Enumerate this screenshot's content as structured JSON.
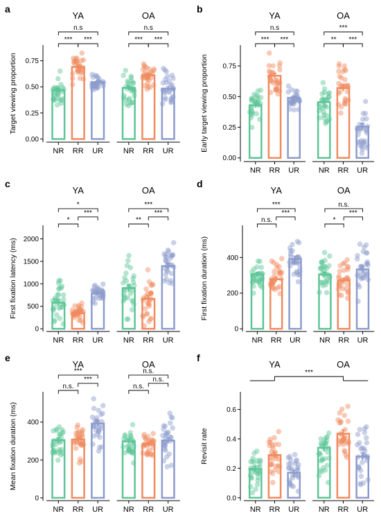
{
  "colors": {
    "NR": "#5cc596",
    "RR": "#f08a5e",
    "UR": "#8c9bcc"
  },
  "chart_data": [
    {
      "panel": "a",
      "type": "bar",
      "ylabel": "Target viewing proportion",
      "yticks": [
        "0.00",
        "0.25",
        "0.50",
        "0.75"
      ],
      "ylim": [
        -0.03,
        0.9
      ],
      "ytick_values": [
        0,
        0.25,
        0.5,
        0.75
      ],
      "groups": [
        {
          "title": "YA",
          "categories": [
            "NR",
            "RR",
            "UR"
          ],
          "values": [
            0.465,
            0.69,
            0.545
          ],
          "errors": [
            0.018,
            0.018,
            0.01
          ]
        },
        {
          "title": "OA",
          "categories": [
            "NR",
            "RR",
            "UR"
          ],
          "values": [
            0.49,
            0.61,
            0.48
          ],
          "errors": [
            0.02,
            0.015,
            0.02
          ]
        }
      ],
      "brackets": [
        {
          "group": 0,
          "from": 0,
          "to": 1,
          "level": 1,
          "label": "***"
        },
        {
          "group": 0,
          "from": 1,
          "to": 2,
          "level": 1,
          "label": "***"
        },
        {
          "group": 0,
          "from": 0,
          "to": 2,
          "level": 2,
          "label": "n.s"
        },
        {
          "group": 1,
          "from": 0,
          "to": 1,
          "level": 1,
          "label": "***"
        },
        {
          "group": 1,
          "from": 1,
          "to": 2,
          "level": 1,
          "label": "***"
        },
        {
          "group": 1,
          "from": 0,
          "to": 2,
          "level": 2,
          "label": "n.s"
        }
      ]
    },
    {
      "panel": "b",
      "type": "bar",
      "ylabel": "Early target viewing proportion",
      "yticks": [
        "0.00",
        "0.25",
        "0.50",
        "0.75"
      ],
      "ylim": [
        -0.03,
        0.92
      ],
      "ytick_values": [
        0,
        0.25,
        0.5,
        0.75
      ],
      "groups": [
        {
          "title": "YA",
          "categories": [
            "NR",
            "RR",
            "UR"
          ],
          "values": [
            0.43,
            0.67,
            0.49
          ],
          "errors": [
            0.02,
            0.02,
            0.012
          ]
        },
        {
          "title": "OA",
          "categories": [
            "NR",
            "RR",
            "UR"
          ],
          "values": [
            0.455,
            0.57,
            0.255
          ],
          "errors": [
            0.025,
            0.025,
            0.025
          ]
        }
      ],
      "brackets": [
        {
          "group": 0,
          "from": 0,
          "to": 1,
          "level": 1,
          "label": "***"
        },
        {
          "group": 0,
          "from": 1,
          "to": 2,
          "level": 1,
          "label": "***"
        },
        {
          "group": 0,
          "from": 0,
          "to": 2,
          "level": 2,
          "label": "n.s"
        },
        {
          "group": 1,
          "from": 0,
          "to": 1,
          "level": 1,
          "label": "**"
        },
        {
          "group": 1,
          "from": 1,
          "to": 2,
          "level": 1,
          "label": "***"
        },
        {
          "group": 1,
          "from": 0,
          "to": 2,
          "level": 2,
          "label": "***"
        }
      ]
    },
    {
      "panel": "c",
      "type": "bar",
      "ylabel": "First fixation latency (ms)",
      "yticks": [
        "0",
        "500",
        "1000",
        "1500",
        "2000"
      ],
      "ylim": [
        -60,
        2300
      ],
      "ytick_values": [
        0,
        500,
        1000,
        1500,
        2000
      ],
      "groups": [
        {
          "title": "YA",
          "categories": [
            "NR",
            "RR",
            "UR"
          ],
          "values": [
            580,
            345,
            785
          ],
          "errors": [
            60,
            35,
            30
          ]
        },
        {
          "title": "OA",
          "categories": [
            "NR",
            "RR",
            "UR"
          ],
          "values": [
            905,
            665,
            1395
          ],
          "errors": [
            80,
            70,
            65
          ]
        }
      ],
      "brackets": [
        {
          "group": 0,
          "from": 0,
          "to": 1,
          "level": 1,
          "label": "*"
        },
        {
          "group": 0,
          "from": 1,
          "to": 2,
          "level": 1.6,
          "label": "***"
        },
        {
          "group": 0,
          "from": 0,
          "to": 2,
          "level": 2.3,
          "label": "*"
        },
        {
          "group": 1,
          "from": 0,
          "to": 1,
          "level": 1,
          "label": "**"
        },
        {
          "group": 1,
          "from": 1,
          "to": 2,
          "level": 1.6,
          "label": "***"
        },
        {
          "group": 1,
          "from": 0,
          "to": 2,
          "level": 2.3,
          "label": "***"
        }
      ]
    },
    {
      "panel": "d",
      "type": "bar",
      "ylabel": "First fixation duration (ms)",
      "yticks": [
        "0",
        "200",
        "400"
      ],
      "ylim": [
        -15,
        580
      ],
      "ytick_values": [
        0,
        200,
        400
      ],
      "groups": [
        {
          "title": "YA",
          "categories": [
            "NR",
            "RR",
            "UR"
          ],
          "values": [
            305,
            278,
            392
          ],
          "errors": [
            12,
            12,
            15
          ]
        },
        {
          "title": "OA",
          "categories": [
            "NR",
            "RR",
            "UR"
          ],
          "values": [
            305,
            272,
            333
          ],
          "errors": [
            12,
            12,
            18
          ]
        }
      ],
      "brackets": [
        {
          "group": 0,
          "from": 0,
          "to": 1,
          "level": 1,
          "label": "n.s."
        },
        {
          "group": 0,
          "from": 1,
          "to": 2,
          "level": 1.6,
          "label": "***"
        },
        {
          "group": 0,
          "from": 0,
          "to": 2,
          "level": 2.3,
          "label": "***"
        },
        {
          "group": 1,
          "from": 0,
          "to": 1,
          "level": 1,
          "label": "*"
        },
        {
          "group": 1,
          "from": 1,
          "to": 2,
          "level": 1.6,
          "label": "***"
        },
        {
          "group": 1,
          "from": 0,
          "to": 2,
          "level": 2.3,
          "label": "n.s."
        }
      ]
    },
    {
      "panel": "e",
      "type": "bar",
      "ylabel": "Mean fixation duration (ms)",
      "yticks": [
        "0",
        "200",
        "400"
      ],
      "ylim": [
        -15,
        560
      ],
      "ytick_values": [
        0,
        200,
        400
      ],
      "groups": [
        {
          "title": "YA",
          "categories": [
            "NR",
            "RR",
            "UR"
          ],
          "values": [
            305,
            308,
            392
          ],
          "errors": [
            12,
            12,
            15
          ]
        },
        {
          "title": "OA",
          "categories": [
            "NR",
            "RR",
            "UR"
          ],
          "values": [
            298,
            283,
            303
          ],
          "errors": [
            12,
            10,
            15
          ]
        }
      ],
      "brackets": [
        {
          "group": 0,
          "from": 0,
          "to": 1,
          "level": 1,
          "label": "n.s."
        },
        {
          "group": 0,
          "from": 1,
          "to": 2,
          "level": 1.6,
          "label": "***"
        },
        {
          "group": 0,
          "from": 0,
          "to": 2,
          "level": 2.3,
          "label": "***"
        },
        {
          "group": 1,
          "from": 0,
          "to": 1,
          "level": 1,
          "label": "n.s."
        },
        {
          "group": 1,
          "from": 1,
          "to": 2,
          "level": 1.6,
          "label": "n.s."
        },
        {
          "group": 1,
          "from": 0,
          "to": 2,
          "level": 2.3,
          "label": "n.s."
        }
      ]
    },
    {
      "panel": "f",
      "type": "bar",
      "ylabel": "Revisit rate",
      "yticks": [
        "0.0",
        "0.2",
        "0.4",
        "0.6"
      ],
      "ylim": [
        -0.02,
        0.72
      ],
      "ytick_values": [
        0,
        0.2,
        0.4,
        0.6
      ],
      "groups": [
        {
          "title": "YA",
          "categories": [
            "NR",
            "RR",
            "UR"
          ],
          "values": [
            0.195,
            0.29,
            0.17
          ],
          "errors": [
            0.02,
            0.02,
            0.015
          ]
        },
        {
          "title": "OA",
          "categories": [
            "NR",
            "RR",
            "UR"
          ],
          "values": [
            0.34,
            0.435,
            0.28
          ],
          "errors": [
            0.025,
            0.025,
            0.025
          ]
        }
      ],
      "brackets": [],
      "group_bracket": {
        "label": "***"
      }
    }
  ]
}
